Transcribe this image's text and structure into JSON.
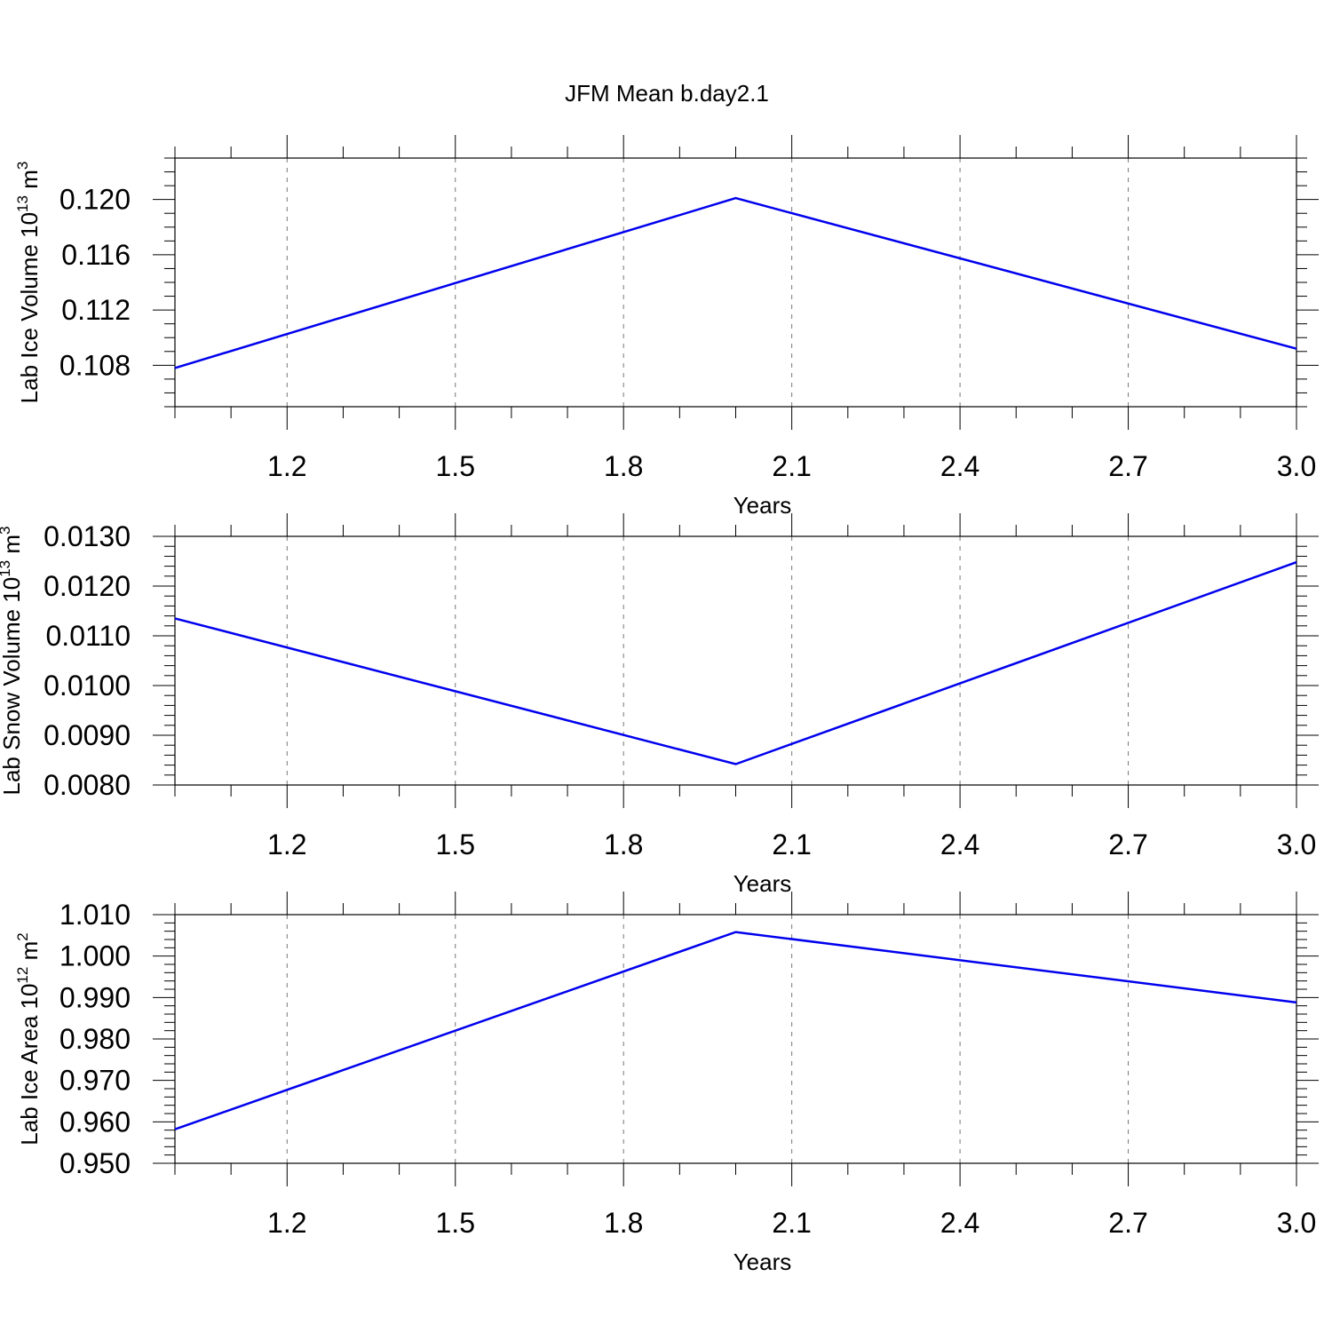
{
  "figure_title": "JFM Mean b.day2.1",
  "line_color": "#0000ee",
  "chart_data": [
    {
      "type": "line",
      "title": "",
      "xlabel": "Years",
      "ylabel": {
        "main": "Lab Ice Volume 10",
        "exp": "13",
        "unit": " m",
        "unit_exp": "3"
      },
      "xlim": [
        1,
        3
      ],
      "xticks": [
        "1.2",
        "1.5",
        "1.8",
        "2.1",
        "2.4",
        "2.7",
        "3.0"
      ],
      "xtick_values": [
        1.2,
        1.5,
        1.8,
        2.1,
        2.4,
        2.7,
        3.0
      ],
      "ylim": [
        0.105,
        0.123
      ],
      "yticks": [
        "0.108",
        "0.112",
        "0.116",
        "0.120"
      ],
      "ytick_values": [
        0.108,
        0.112,
        0.116,
        0.12
      ],
      "yminor_step": 0.001,
      "grid": "vertical dashed",
      "series": [
        {
          "x": [
            1,
            2,
            3
          ],
          "y": [
            0.1078,
            0.1201,
            0.1092
          ]
        }
      ]
    },
    {
      "type": "line",
      "title": "",
      "xlabel": "Years",
      "ylabel": {
        "main": "Lab Snow Volume 10",
        "exp": "13",
        "unit": " m",
        "unit_exp": "3"
      },
      "xlim": [
        1,
        3
      ],
      "xticks": [
        "1.2",
        "1.5",
        "1.8",
        "2.1",
        "2.4",
        "2.7",
        "3.0"
      ],
      "xtick_values": [
        1.2,
        1.5,
        1.8,
        2.1,
        2.4,
        2.7,
        3.0
      ],
      "ylim": [
        0.008,
        0.013
      ],
      "yticks": [
        "0.0080",
        "0.0090",
        "0.0100",
        "0.0110",
        "0.0120",
        "0.0130"
      ],
      "ytick_values": [
        0.008,
        0.009,
        0.01,
        0.011,
        0.012,
        0.013
      ],
      "yminor_step": 0.0002,
      "grid": "vertical dashed",
      "series": [
        {
          "x": [
            1,
            2,
            3
          ],
          "y": [
            0.01135,
            0.00842,
            0.01248
          ]
        }
      ]
    },
    {
      "type": "line",
      "title": "",
      "xlabel": "Years",
      "ylabel": {
        "main": "Lab Ice Area 10",
        "exp": "12",
        "unit": " m",
        "unit_exp": "2"
      },
      "xlim": [
        1,
        3
      ],
      "xticks": [
        "1.2",
        "1.5",
        "1.8",
        "2.1",
        "2.4",
        "2.7",
        "3.0"
      ],
      "xtick_values": [
        1.2,
        1.5,
        1.8,
        2.1,
        2.4,
        2.7,
        3.0
      ],
      "ylim": [
        0.95,
        1.01
      ],
      "yticks": [
        "0.950",
        "0.960",
        "0.970",
        "0.980",
        "0.990",
        "1.000",
        "1.010"
      ],
      "ytick_values": [
        0.95,
        0.96,
        0.97,
        0.98,
        0.99,
        1.0,
        1.01
      ],
      "yminor_step": 0.002,
      "grid": "vertical dashed",
      "series": [
        {
          "x": [
            1,
            2,
            3
          ],
          "y": [
            0.9582,
            1.0058,
            0.9888
          ]
        }
      ]
    }
  ]
}
